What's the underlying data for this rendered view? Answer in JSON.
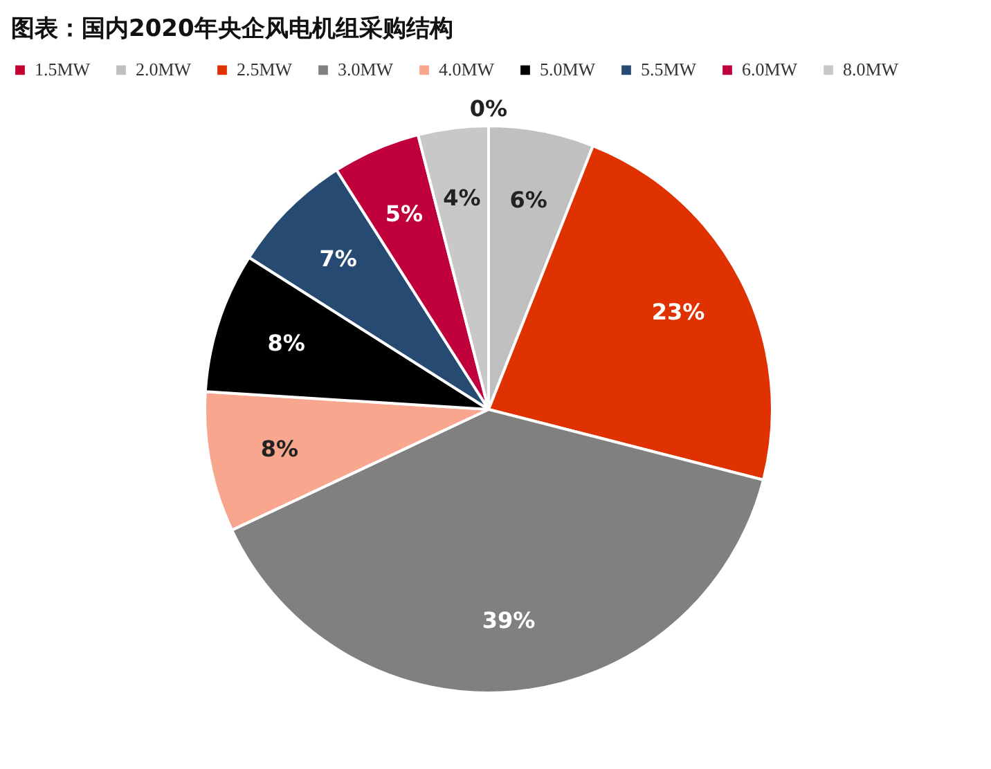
{
  "chart_data": {
    "type": "pie",
    "title": "图表：国内2020年央企风电机组采购结构",
    "categories": [
      "1.5MW",
      "2.0MW",
      "2.5MW",
      "3.0MW",
      "4.0MW",
      "5.0MW",
      "5.5MW",
      "6.0MW",
      "8.0MW"
    ],
    "values": [
      0,
      6,
      23,
      39,
      8,
      8,
      7,
      5,
      4
    ],
    "colors": [
      "#c0002f",
      "#c0c0c0",
      "#e03200",
      "#808080",
      "#f9a68f",
      "#000000",
      "#264a72",
      "#c0003a",
      "#c8c8c8"
    ],
    "value_labels": [
      "0%",
      "6%",
      "23%",
      "39%",
      "8%",
      "8%",
      "7%",
      "5%",
      "4%"
    ],
    "legend": "top"
  }
}
